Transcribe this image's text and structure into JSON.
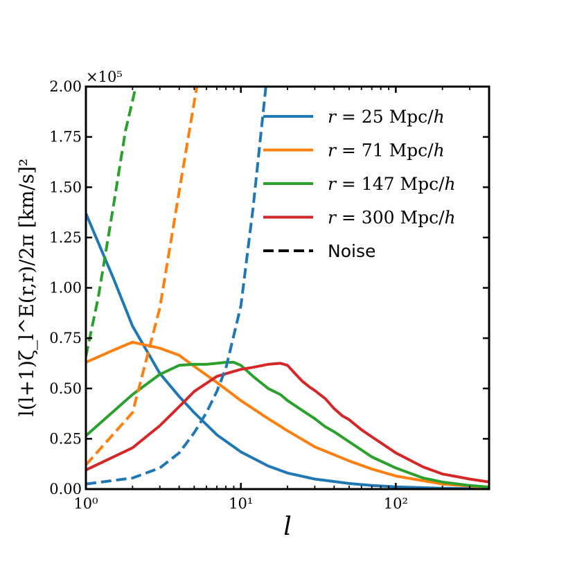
{
  "chart_data": {
    "type": "line",
    "xscale": "log",
    "xlim": [
      1,
      400
    ],
    "ylim": [
      0,
      200000
    ],
    "xlabel": "l",
    "ylabel": "l(l+1)ζ_l^E(r,r)/2π [km/s]²",
    "offset_label": "×10⁵",
    "x_ticks": [
      {
        "value": 1,
        "label": "10⁰"
      },
      {
        "value": 10,
        "label": "10¹"
      },
      {
        "value": 100,
        "label": "10²"
      }
    ],
    "y_ticks": [
      {
        "value": 0,
        "label": "0.00"
      },
      {
        "value": 25000,
        "label": "0.25"
      },
      {
        "value": 50000,
        "label": "0.50"
      },
      {
        "value": 75000,
        "label": "0.75"
      },
      {
        "value": 100000,
        "label": "1.00"
      },
      {
        "value": 125000,
        "label": "1.25"
      },
      {
        "value": 150000,
        "label": "1.50"
      },
      {
        "value": 175000,
        "label": "1.75"
      },
      {
        "value": 200000,
        "label": "2.00"
      }
    ],
    "legend_position": "upper-right",
    "series": [
      {
        "name": "r = 25 Mpc/h",
        "color": "#1f77b4",
        "style": "solid",
        "x": [
          1,
          1.5,
          2,
          3,
          4,
          5,
          7,
          10,
          15,
          20,
          30,
          50,
          70,
          100,
          200,
          400
        ],
        "y": [
          137000,
          105000,
          81000,
          57500,
          46000,
          38000,
          27000,
          18500,
          11500,
          8000,
          5000,
          2800,
          1800,
          1100,
          400,
          150
        ]
      },
      {
        "name": "r = 71 Mpc/h",
        "color": "#ff7f0e",
        "style": "solid",
        "x": [
          1,
          1.5,
          2,
          3,
          4,
          5,
          7,
          10,
          15,
          20,
          30,
          50,
          70,
          100,
          200,
          400
        ],
        "y": [
          63000,
          69000,
          73000,
          70000,
          66500,
          61000,
          53000,
          44000,
          35000,
          29000,
          21000,
          14000,
          10000,
          6500,
          2500,
          800
        ]
      },
      {
        "name": "r = 147 Mpc/h",
        "color": "#2ca02c",
        "style": "solid",
        "x": [
          1,
          2,
          3,
          4,
          5,
          6,
          7,
          8,
          9,
          10,
          12,
          15,
          18,
          20,
          25,
          30,
          35,
          40,
          50,
          60,
          70,
          100,
          150,
          200,
          300,
          400
        ],
        "y": [
          26500,
          47000,
          57000,
          61500,
          62000,
          62000,
          62500,
          63000,
          63000,
          61500,
          56000,
          50000,
          47000,
          44000,
          39000,
          35000,
          31000,
          28500,
          23500,
          19500,
          16000,
          10500,
          5500,
          3500,
          1800,
          1000
        ]
      },
      {
        "name": "r = 300 Mpc/h",
        "color": "#d62728",
        "style": "solid",
        "x": [
          1,
          2,
          3,
          4,
          5,
          7,
          9,
          10,
          12,
          15,
          18,
          20,
          22,
          25,
          28,
          30,
          35,
          40,
          45,
          50,
          60,
          70,
          80,
          100,
          150,
          200,
          300,
          400
        ],
        "y": [
          9500,
          20500,
          31500,
          41000,
          48500,
          56000,
          58500,
          59500,
          60500,
          62000,
          62500,
          61500,
          58000,
          53500,
          50500,
          49000,
          45000,
          40000,
          36500,
          34500,
          29500,
          26000,
          23000,
          18000,
          11000,
          7500,
          5000,
          3500
        ]
      },
      {
        "name": "Noise",
        "color": "#2ca02c",
        "style": "dashed",
        "x": [
          1,
          1.2,
          1.5,
          1.8,
          2.1
        ],
        "y": [
          66000,
          95000,
          140000,
          178000,
          200000
        ]
      },
      {
        "name": "Noise",
        "color": "#ff7f0e",
        "style": "dashed",
        "x": [
          1,
          2,
          3,
          4,
          5.2
        ],
        "y": [
          12000,
          38000,
          90000,
          148000,
          200000
        ]
      },
      {
        "name": "Noise",
        "color": "#1f77b4",
        "style": "dashed",
        "x": [
          1,
          2,
          3,
          4,
          5,
          6,
          7,
          8,
          10,
          12,
          14.5
        ],
        "y": [
          2500,
          5500,
          10500,
          18000,
          28000,
          38000,
          48500,
          60000,
          91000,
          140000,
          200000
        ]
      }
    ],
    "legend": [
      {
        "label": "r = 25 Mpc/h",
        "r": "r",
        "eq": " = 25 ",
        "unit": "Mpc/",
        "h": "h",
        "color": "#1f77b4",
        "style": "solid"
      },
      {
        "label": "r = 71 Mpc/h",
        "r": "r",
        "eq": " = 71 ",
        "unit": "Mpc/",
        "h": "h",
        "color": "#ff7f0e",
        "style": "solid"
      },
      {
        "label": "r = 147 Mpc/h",
        "r": "r",
        "eq": " = 147 ",
        "unit": "Mpc/",
        "h": "h",
        "color": "#2ca02c",
        "style": "solid"
      },
      {
        "label": "r = 300 Mpc/h",
        "r": "r",
        "eq": " = 300 ",
        "unit": "Mpc/",
        "h": "h",
        "color": "#d62728",
        "style": "solid"
      },
      {
        "label": "Noise",
        "color": "#000000",
        "style": "dashed"
      }
    ]
  }
}
